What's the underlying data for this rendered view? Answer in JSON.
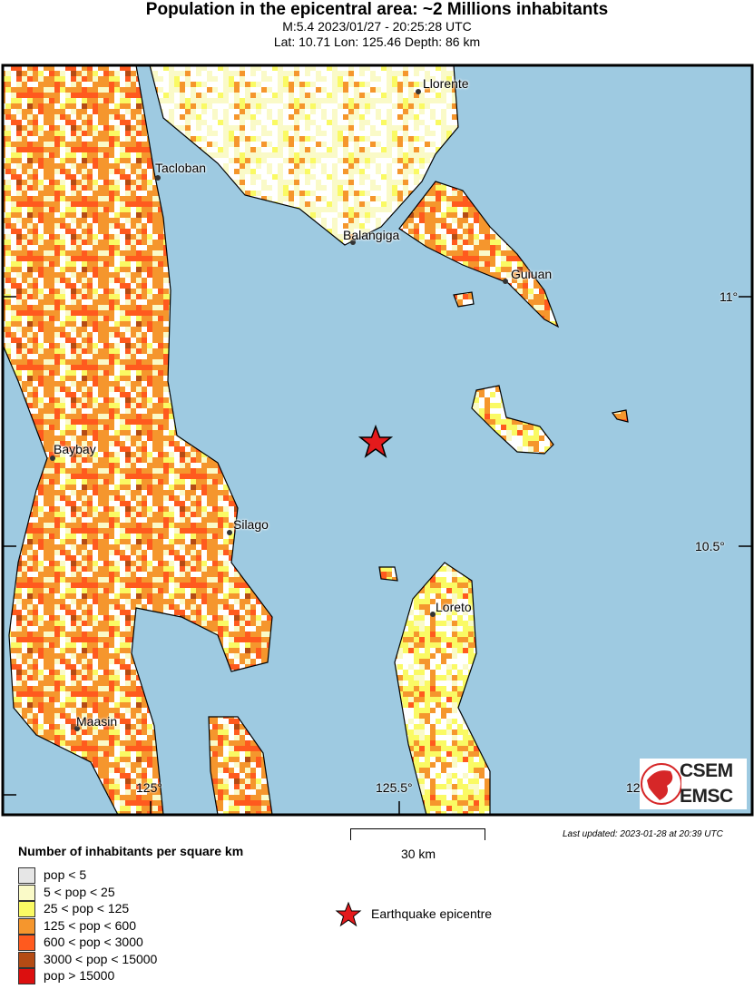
{
  "header": {
    "title": "Population in the epicentral area: ~2 Millions inhabitants",
    "event": "M:5.4 2023/01/27 - 20:25:28 UTC",
    "location": "Lat: 10.71 Lon: 125.46 Depth: 86 km"
  },
  "map": {
    "sea_color": "#9ecae1",
    "places": [
      "Llorente",
      "Tacloban",
      "Balangiga",
      "Guiuan",
      "Baybay",
      "Silago",
      "Loreto",
      "Maasin"
    ],
    "lat_labels": [
      "11°",
      "10.5°"
    ],
    "lon_labels": [
      "125°",
      "125.5°",
      "12"
    ],
    "epicentre": {
      "lat": 10.71,
      "lon": 125.46,
      "icon": "red-star-icon",
      "color": "#e41a1c"
    }
  },
  "logo": {
    "line1": "CSEM",
    "line2": "EMSC"
  },
  "last_updated": "Last updated: 2023-01-28 at 20:39 UTC",
  "scale_bar": {
    "label": "30 km"
  },
  "legend": {
    "title": "Number of inhabitants per square km",
    "items": [
      {
        "label": "pop < 5",
        "color": "#e6e6e6"
      },
      {
        "label": "5 < pop < 25",
        "color": "#fafac8"
      },
      {
        "label": "25 < pop < 125",
        "color": "#fafa64"
      },
      {
        "label": "125 < pop < 600",
        "color": "#f5962d"
      },
      {
        "label": "600 < pop < 3000",
        "color": "#ff5a1e"
      },
      {
        "label": "3000 < pop < 15000",
        "color": "#b44b14"
      },
      {
        "label": "pop > 15000",
        "color": "#dc0f0f"
      }
    ],
    "epicentre_label": "Earthquake epicentre"
  }
}
